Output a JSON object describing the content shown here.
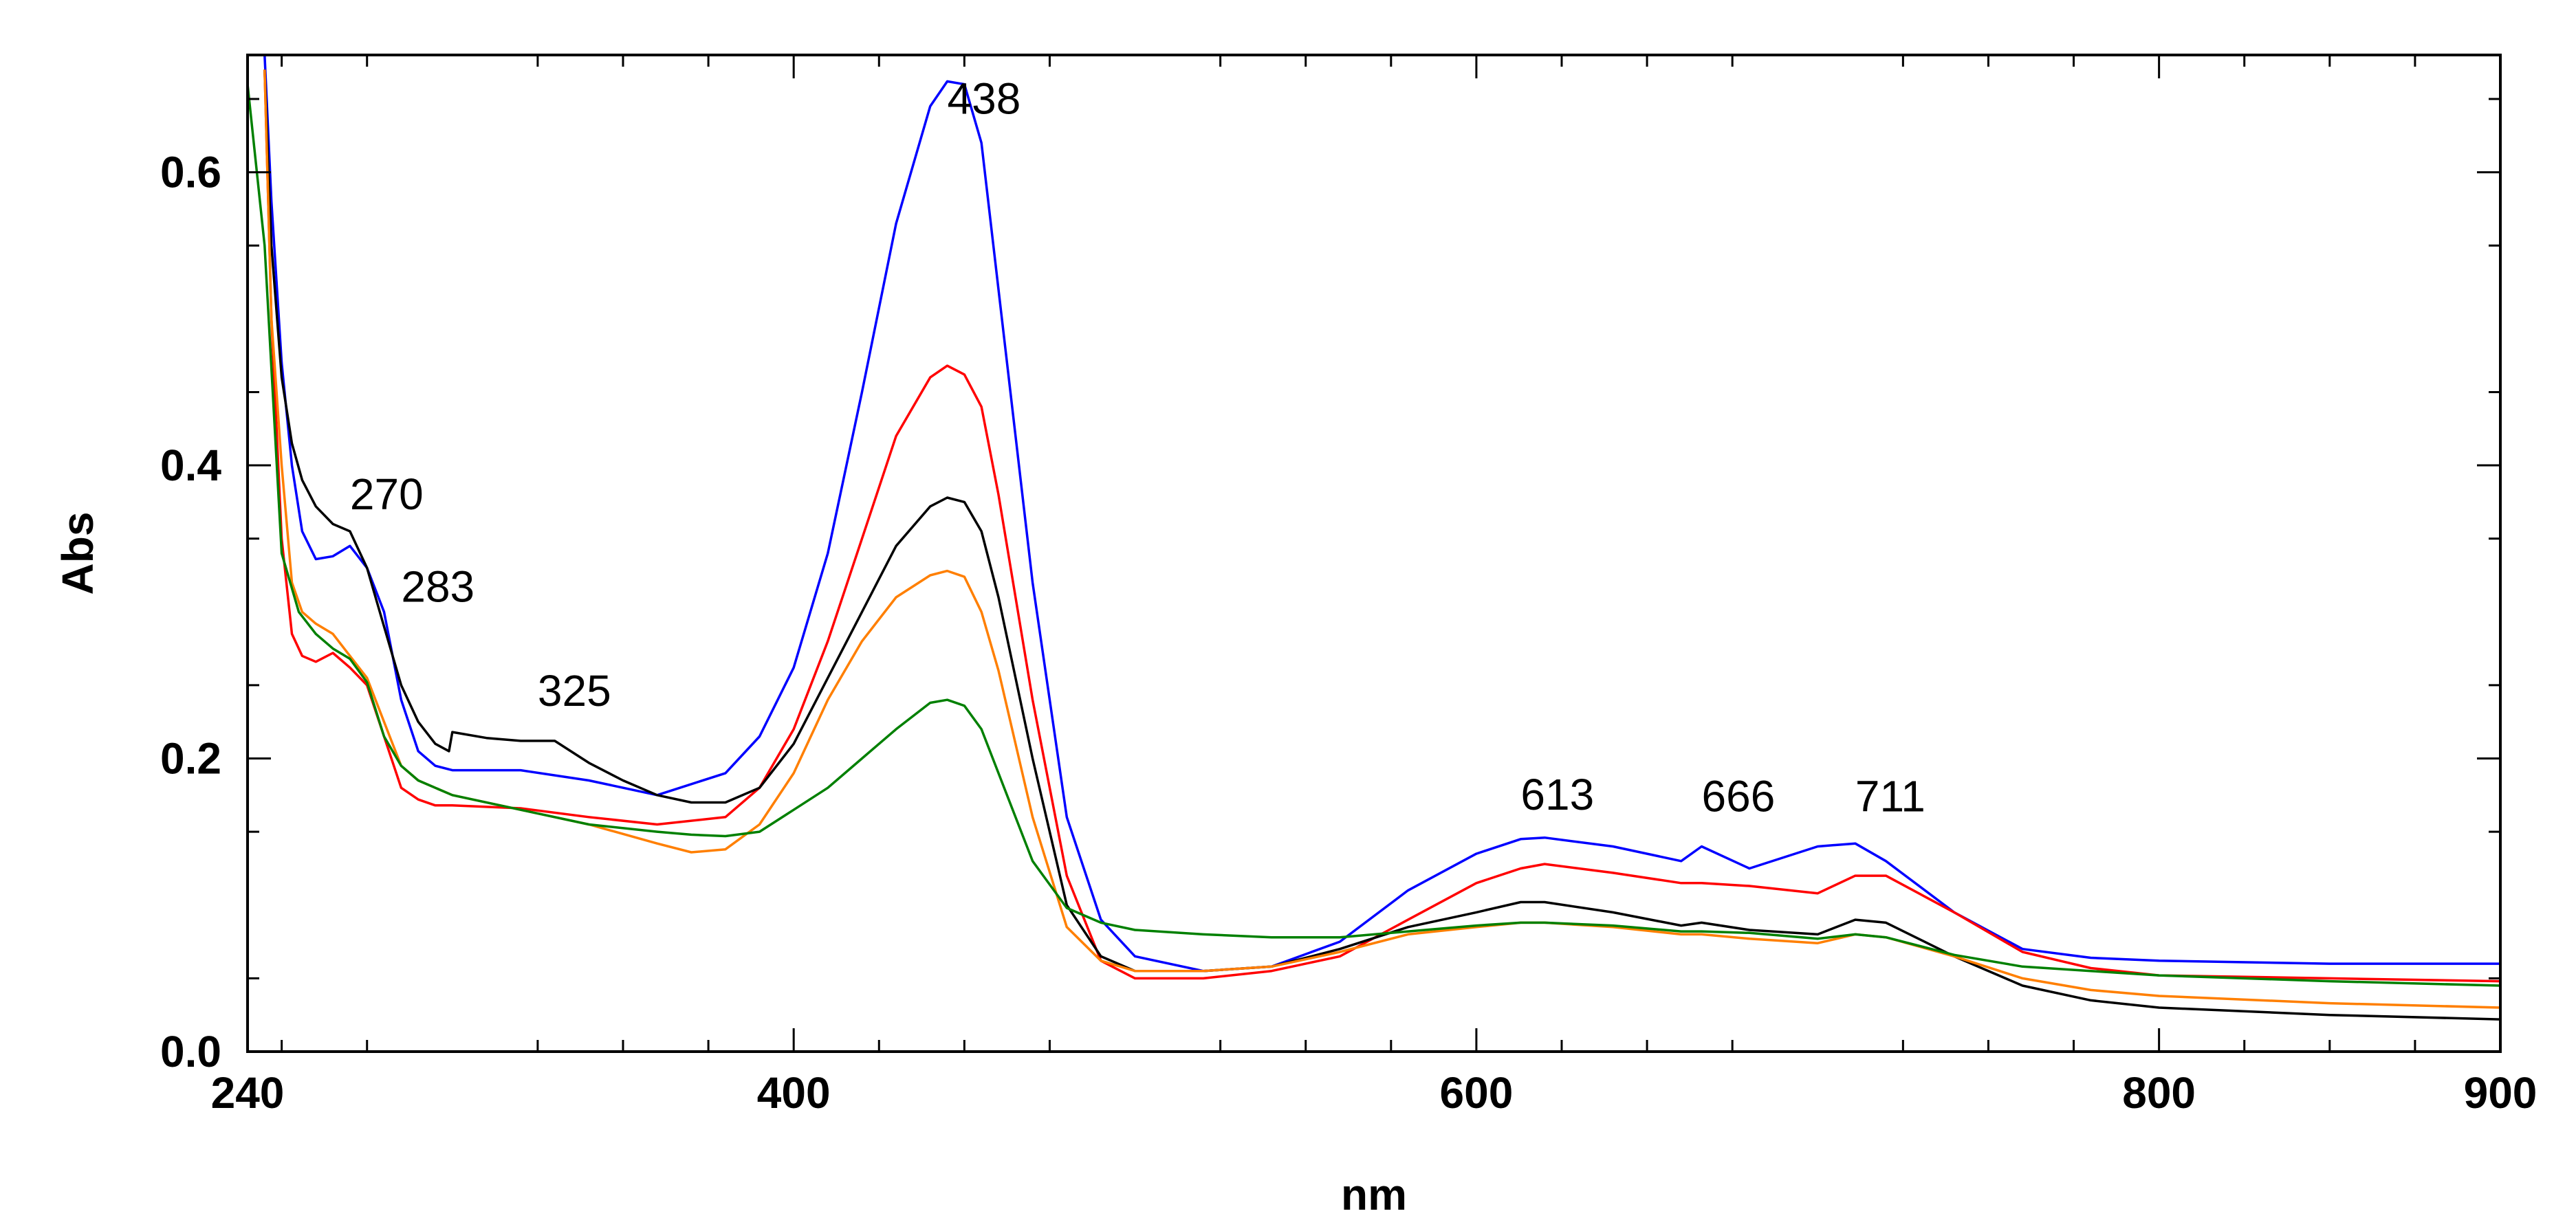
{
  "chart_data": {
    "type": "line",
    "title": "",
    "xlabel": "nm",
    "ylabel": "Abs",
    "xlim": [
      240,
      900
    ],
    "ylim": [
      0.0,
      0.68
    ],
    "x_ticks": [
      240,
      400,
      600,
      800,
      900
    ],
    "y_ticks": [
      0.0,
      0.2,
      0.4,
      0.6
    ],
    "x_tick_labels": [
      "240",
      "400",
      "600",
      "800",
      "900"
    ],
    "y_tick_labels": [
      "0.0",
      "0.2",
      "0.4",
      "0.6"
    ],
    "grid": false,
    "peak_annotations": [
      {
        "label": "270",
        "x": 270,
        "y": 0.37
      },
      {
        "label": "283",
        "x": 285,
        "y": 0.307
      },
      {
        "label": "325",
        "x": 325,
        "y": 0.236
      },
      {
        "label": "438",
        "x": 445,
        "y": 0.64
      },
      {
        "label": "613",
        "x": 613,
        "y": 0.165
      },
      {
        "label": "666",
        "x": 666,
        "y": 0.164
      },
      {
        "label": "711",
        "x": 711,
        "y": 0.164
      }
    ],
    "series": [
      {
        "name": "blue",
        "color": "#0000ff",
        "x": [
          245,
          247,
          250,
          253,
          256,
          260,
          265,
          270,
          275,
          280,
          285,
          290,
          295,
          300,
          320,
          340,
          360,
          380,
          390,
          400,
          410,
          420,
          430,
          440,
          445,
          450,
          455,
          460,
          470,
          480,
          490,
          500,
          520,
          540,
          560,
          580,
          600,
          613,
          620,
          640,
          660,
          666,
          680,
          700,
          711,
          720,
          740,
          760,
          780,
          800,
          850,
          900
        ],
        "y": [
          0.68,
          0.58,
          0.47,
          0.4,
          0.355,
          0.336,
          0.338,
          0.345,
          0.33,
          0.3,
          0.24,
          0.205,
          0.195,
          0.192,
          0.192,
          0.185,
          0.175,
          0.19,
          0.215,
          0.262,
          0.34,
          0.45,
          0.565,
          0.645,
          0.662,
          0.66,
          0.62,
          0.52,
          0.32,
          0.16,
          0.09,
          0.065,
          0.055,
          0.058,
          0.075,
          0.11,
          0.135,
          0.145,
          0.146,
          0.14,
          0.13,
          0.14,
          0.125,
          0.14,
          0.142,
          0.13,
          0.095,
          0.07,
          0.064,
          0.062,
          0.06,
          0.06
        ]
      },
      {
        "name": "red",
        "color": "#ff0000",
        "x": [
          245,
          247,
          250,
          253,
          256,
          260,
          265,
          270,
          275,
          280,
          285,
          290,
          295,
          300,
          320,
          340,
          360,
          380,
          390,
          400,
          410,
          420,
          430,
          440,
          445,
          450,
          455,
          460,
          470,
          480,
          490,
          500,
          520,
          540,
          560,
          580,
          600,
          613,
          620,
          640,
          660,
          666,
          680,
          700,
          711,
          720,
          740,
          760,
          780,
          800,
          850,
          900
        ],
        "y": [
          0.67,
          0.5,
          0.35,
          0.285,
          0.27,
          0.266,
          0.272,
          0.262,
          0.25,
          0.215,
          0.18,
          0.172,
          0.168,
          0.168,
          0.166,
          0.16,
          0.155,
          0.16,
          0.18,
          0.22,
          0.28,
          0.35,
          0.42,
          0.46,
          0.468,
          0.462,
          0.44,
          0.38,
          0.24,
          0.12,
          0.062,
          0.05,
          0.05,
          0.055,
          0.065,
          0.09,
          0.115,
          0.125,
          0.128,
          0.122,
          0.115,
          0.115,
          0.113,
          0.108,
          0.12,
          0.12,
          0.095,
          0.068,
          0.057,
          0.052,
          0.05,
          0.048
        ]
      },
      {
        "name": "black",
        "color": "#000000",
        "x": [
          245,
          247,
          250,
          253,
          256,
          260,
          265,
          270,
          275,
          280,
          285,
          290,
          295,
          299,
          300,
          310,
          320,
          330,
          340,
          350,
          360,
          370,
          380,
          390,
          400,
          410,
          420,
          430,
          440,
          445,
          450,
          455,
          460,
          470,
          480,
          490,
          500,
          520,
          540,
          560,
          580,
          600,
          613,
          620,
          640,
          660,
          666,
          680,
          700,
          711,
          720,
          740,
          760,
          780,
          800,
          850,
          900
        ],
        "y": [
          0.67,
          0.55,
          0.46,
          0.415,
          0.39,
          0.372,
          0.36,
          0.355,
          0.33,
          0.29,
          0.25,
          0.225,
          0.21,
          0.205,
          0.218,
          0.214,
          0.212,
          0.212,
          0.197,
          0.185,
          0.175,
          0.17,
          0.17,
          0.18,
          0.21,
          0.255,
          0.3,
          0.345,
          0.372,
          0.378,
          0.375,
          0.355,
          0.31,
          0.2,
          0.1,
          0.065,
          0.055,
          0.055,
          0.058,
          0.07,
          0.085,
          0.095,
          0.102,
          0.102,
          0.095,
          0.086,
          0.088,
          0.083,
          0.08,
          0.09,
          0.088,
          0.065,
          0.045,
          0.035,
          0.03,
          0.025,
          0.022
        ]
      },
      {
        "name": "orange",
        "color": "#ff7f00",
        "x": [
          245,
          247,
          250,
          253,
          256,
          260,
          265,
          270,
          275,
          280,
          285,
          290,
          295,
          300,
          320,
          340,
          360,
          370,
          380,
          390,
          400,
          410,
          420,
          430,
          440,
          445,
          450,
          455,
          460,
          470,
          480,
          490,
          500,
          520,
          540,
          560,
          580,
          600,
          613,
          620,
          640,
          660,
          666,
          680,
          700,
          711,
          720,
          740,
          760,
          780,
          800,
          850,
          900
        ],
        "y": [
          0.67,
          0.5,
          0.4,
          0.32,
          0.3,
          0.292,
          0.285,
          0.27,
          0.255,
          0.225,
          0.195,
          0.185,
          0.18,
          0.175,
          0.165,
          0.155,
          0.142,
          0.136,
          0.138,
          0.155,
          0.19,
          0.24,
          0.28,
          0.31,
          0.325,
          0.328,
          0.324,
          0.3,
          0.26,
          0.16,
          0.085,
          0.062,
          0.055,
          0.055,
          0.058,
          0.068,
          0.08,
          0.085,
          0.088,
          0.088,
          0.085,
          0.08,
          0.08,
          0.077,
          0.074,
          0.08,
          0.078,
          0.065,
          0.05,
          0.042,
          0.038,
          0.033,
          0.03
        ]
      },
      {
        "name": "green",
        "color": "#008000",
        "x": [
          240,
          245,
          250,
          255,
          260,
          265,
          270,
          275,
          280,
          285,
          290,
          295,
          300,
          320,
          340,
          360,
          370,
          380,
          390,
          400,
          410,
          420,
          430,
          440,
          445,
          450,
          455,
          460,
          470,
          480,
          490,
          500,
          520,
          540,
          560,
          580,
          600,
          613,
          620,
          640,
          660,
          666,
          680,
          700,
          711,
          720,
          740,
          760,
          780,
          800,
          850,
          900
        ],
        "y": [
          0.66,
          0.55,
          0.34,
          0.3,
          0.285,
          0.275,
          0.268,
          0.252,
          0.215,
          0.195,
          0.185,
          0.18,
          0.175,
          0.165,
          0.155,
          0.15,
          0.148,
          0.147,
          0.15,
          0.165,
          0.18,
          0.2,
          0.22,
          0.238,
          0.24,
          0.236,
          0.22,
          0.19,
          0.13,
          0.098,
          0.088,
          0.083,
          0.08,
          0.078,
          0.078,
          0.082,
          0.086,
          0.088,
          0.088,
          0.086,
          0.082,
          0.082,
          0.081,
          0.077,
          0.08,
          0.078,
          0.066,
          0.058,
          0.055,
          0.052,
          0.048,
          0.045
        ]
      }
    ]
  }
}
